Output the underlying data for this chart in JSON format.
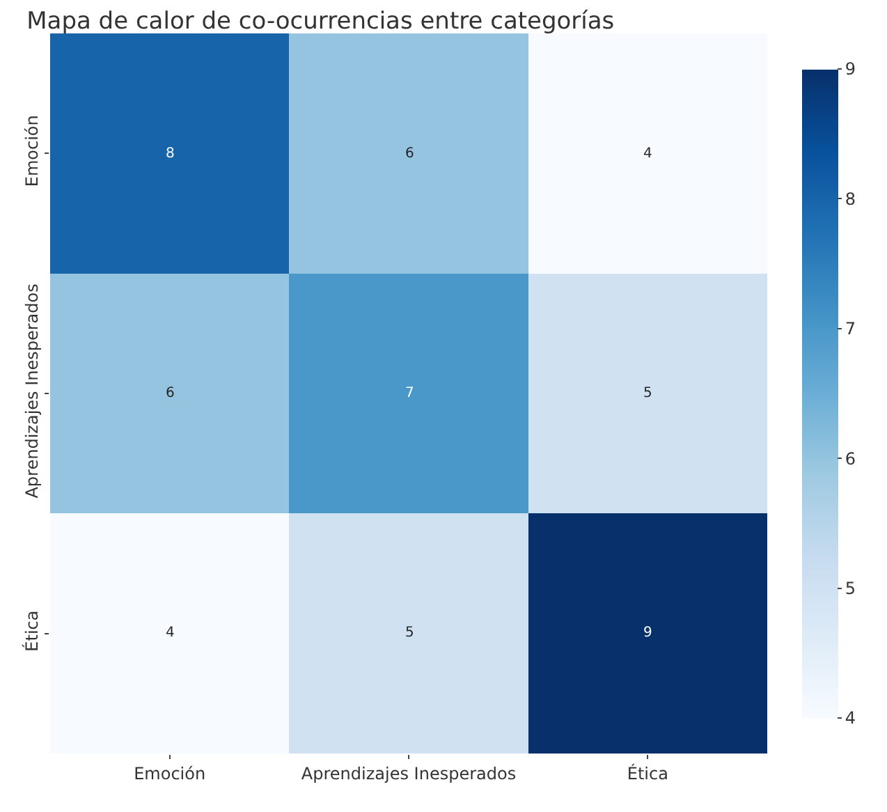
{
  "chart_data": {
    "type": "heatmap",
    "title": "Mapa de calor de co-ocurrencias entre categorías",
    "categories": [
      "Emoción",
      "Aprendizajes Inesperados",
      "Ética"
    ],
    "y_categories": [
      "Emoción",
      "Aprendizajes Inesperados",
      "Ética"
    ],
    "cells": [
      [
        8,
        6,
        4
      ],
      [
        6,
        7,
        5
      ],
      [
        4,
        5,
        9
      ]
    ],
    "clim": [
      4,
      9
    ],
    "cticks": [
      4,
      5,
      6,
      7,
      8,
      9
    ],
    "data_labels": true
  }
}
